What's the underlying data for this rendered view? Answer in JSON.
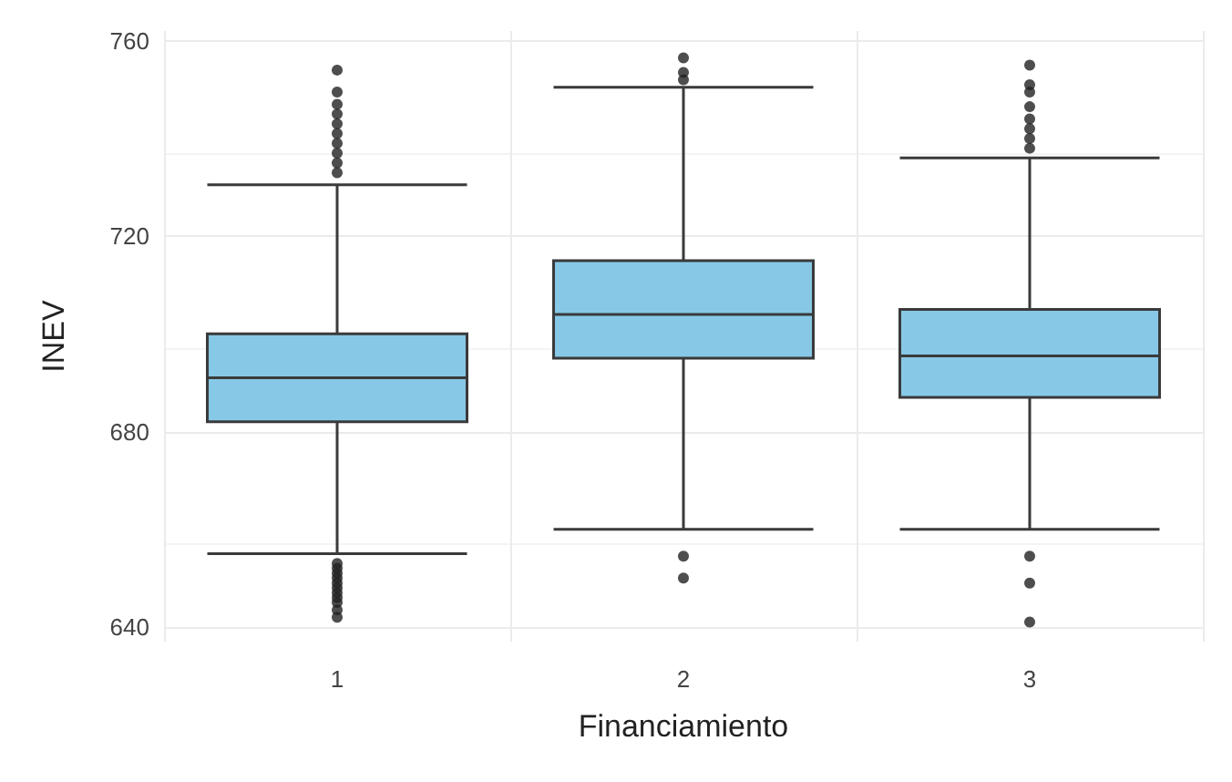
{
  "chart_data": {
    "type": "box",
    "xlabel": "Financiamiento",
    "ylabel": "INEV",
    "categories": [
      "1",
      "2",
      "3"
    ],
    "boxes": [
      {
        "low": 655,
        "q1": 682,
        "median": 691,
        "q3": 700,
        "high": 730.5,
        "outliers": [
          754,
          749.5,
          747,
          745,
          743,
          741,
          739,
          737,
          735,
          733,
          653,
          652,
          651,
          650,
          649,
          648,
          647,
          646,
          645,
          643.5,
          642
        ]
      },
      {
        "low": 660,
        "q1": 695,
        "median": 704,
        "q3": 715,
        "high": 750.5,
        "outliers": [
          756.5,
          753.5,
          752,
          654.5,
          650
        ]
      },
      {
        "low": 660,
        "q1": 687,
        "median": 695.5,
        "q3": 705,
        "high": 736,
        "outliers": [
          755,
          751,
          749.5,
          746.5,
          744,
          742,
          740,
          738,
          654.5,
          649,
          641
        ]
      }
    ],
    "color": "#87c8e6",
    "ylim": [
      637,
      762
    ],
    "yticks": [
      640,
      680,
      720,
      760
    ],
    "grid": true
  }
}
